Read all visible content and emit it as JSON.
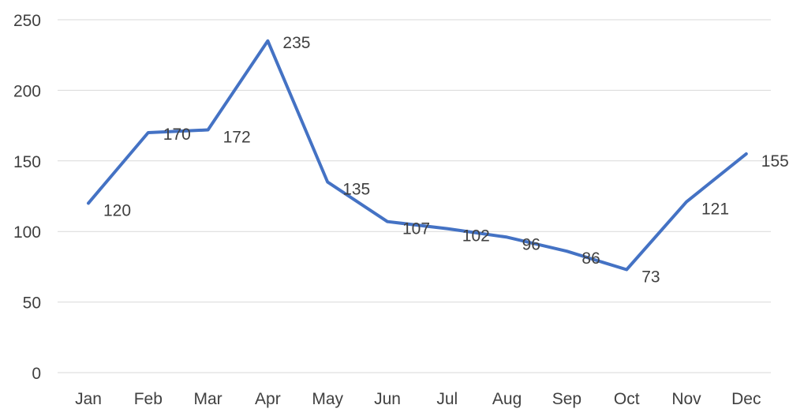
{
  "chart_data": {
    "type": "line",
    "categories": [
      "Jan",
      "Feb",
      "Mar",
      "Apr",
      "May",
      "Jun",
      "Jul",
      "Aug",
      "Sep",
      "Oct",
      "Nov",
      "Dec"
    ],
    "series": [
      {
        "values": [
          120,
          170,
          172,
          235,
          135,
          107,
          102,
          96,
          86,
          73,
          121,
          155
        ],
        "color": "#4472c4"
      }
    ],
    "y_ticks": [
      0,
      50,
      100,
      150,
      200,
      250
    ],
    "ylim": [
      0,
      250
    ],
    "grid": true,
    "legend": "none",
    "data_labels": true
  }
}
